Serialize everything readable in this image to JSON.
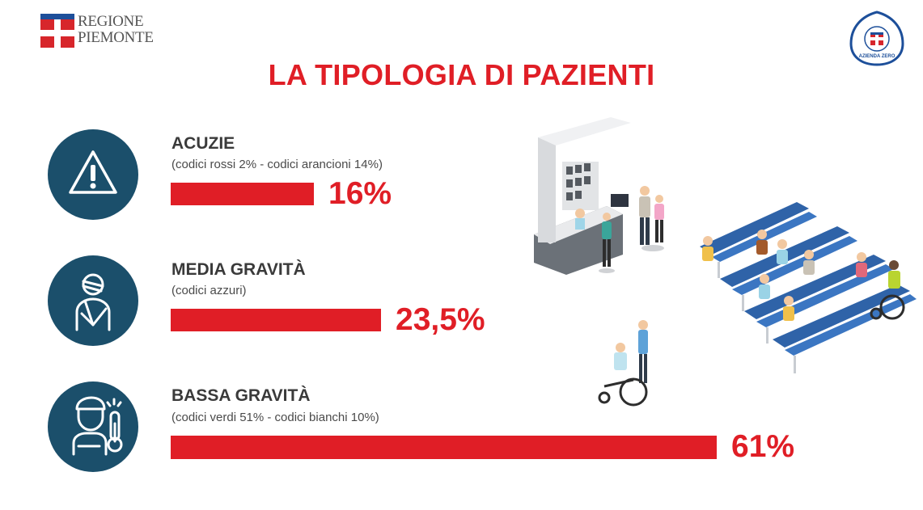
{
  "header": {
    "logo_left_line1": "REGIONE",
    "logo_left_line2": "PIEMONTE",
    "logo_right_text": "AZIENDA ZERO",
    "title": "LA TIPOLOGIA DI PAZIENTI"
  },
  "colors": {
    "accent_red": "#e01e26",
    "icon_blue": "#1b4f6b",
    "heading_gray": "#3a3a3a"
  },
  "categories": [
    {
      "icon": "warning-icon",
      "title": "ACUZIE",
      "subtitle": "(codici rossi 2% - codici arancioni 14%)",
      "value_label": "16%"
    },
    {
      "icon": "injured-patient-icon",
      "title": "MEDIA GRAVITÀ",
      "subtitle": "(codici azzuri)",
      "value_label": "23,5%"
    },
    {
      "icon": "fever-patient-icon",
      "title": "BASSA GRAVITÀ",
      "subtitle": "(codici verdi 51% - codici bianchi 10%)",
      "value_label": "61%"
    }
  ],
  "chart_data": {
    "type": "bar",
    "orientation": "horizontal",
    "title": "LA TIPOLOGIA DI PAZIENTI",
    "categories": [
      "ACUZIE",
      "MEDIA GRAVITÀ",
      "BASSA GRAVITÀ"
    ],
    "values": [
      16,
      23.5,
      61
    ],
    "value_labels": [
      "16%",
      "23,5%",
      "61%"
    ],
    "unit": "%",
    "xlim": [
      0,
      61
    ],
    "grid": false
  }
}
